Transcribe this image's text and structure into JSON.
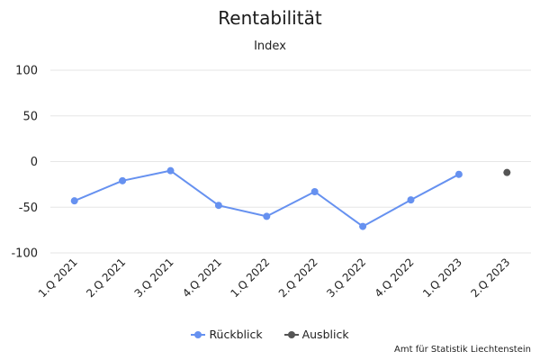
{
  "chart_data": {
    "type": "line",
    "title": "Rentabilität",
    "subtitle": "Index",
    "xlabel": "",
    "ylabel": "",
    "categories": [
      "1.Q 2021",
      "2.Q 2021",
      "3.Q 2021",
      "4.Q 2021",
      "1.Q 2022",
      "2.Q 2022",
      "3.Q 2022",
      "4.Q 2022",
      "1.Q 2023",
      "2.Q 2023"
    ],
    "ylim": [
      -100,
      100
    ],
    "yticks": [
      "100",
      "50",
      "0",
      "-50",
      "-100"
    ],
    "grid": true,
    "legend_position": "bottom",
    "series": [
      {
        "name": "Rückblick",
        "color": "#6691f0",
        "values": [
          -43,
          -21,
          -10,
          -48,
          -60,
          -33,
          -71,
          -42,
          -14,
          null
        ]
      },
      {
        "name": "Ausblick",
        "color": "#555555",
        "values": [
          null,
          null,
          null,
          null,
          null,
          null,
          null,
          null,
          null,
          -12
        ]
      }
    ]
  },
  "credit": "Amt für Statistik Liechtenstein"
}
